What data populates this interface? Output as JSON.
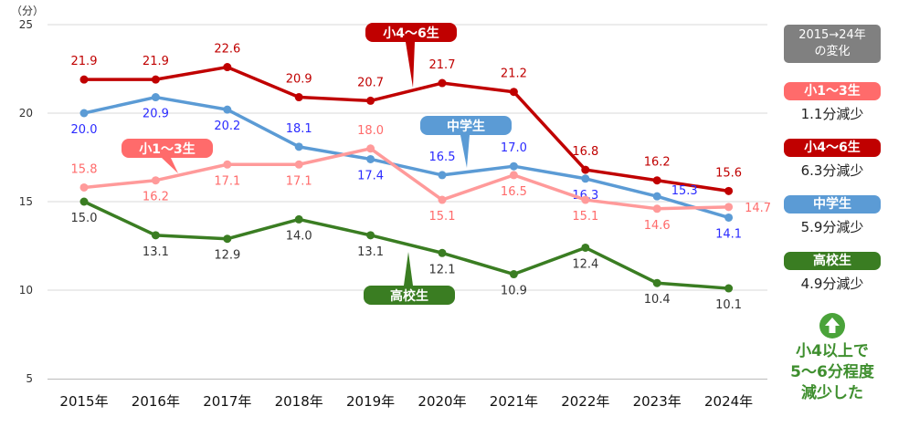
{
  "chart_data": {
    "type": "line",
    "unit_label": "（分）",
    "categories": [
      "2015年",
      "2016年",
      "2017年",
      "2018年",
      "2019年",
      "2020年",
      "2021年",
      "2022年",
      "2023年",
      "2024年"
    ],
    "ylim": [
      5,
      25
    ],
    "yticks": [
      5,
      10,
      15,
      20,
      25
    ],
    "grid": true,
    "series": [
      {
        "name": "小4～6生",
        "color": "#c00000",
        "label_color": "#c00000",
        "values": [
          21.9,
          21.9,
          22.6,
          20.9,
          20.7,
          21.7,
          21.2,
          16.8,
          16.2,
          15.6
        ]
      },
      {
        "name": "中学生",
        "color": "#5b9bd5",
        "label_color": "#2b2bff",
        "values": [
          20.0,
          20.9,
          20.2,
          18.1,
          17.4,
          16.5,
          17.0,
          16.3,
          15.3,
          14.1
        ]
      },
      {
        "name": "小1～3生",
        "color": "#ff9a9a",
        "label_color": "#ff6b6b",
        "values": [
          15.8,
          16.2,
          17.1,
          17.1,
          18.0,
          15.1,
          16.5,
          15.1,
          14.6,
          14.7
        ]
      },
      {
        "name": "高校生",
        "color": "#3a7d22",
        "label_color": "#333333",
        "values": [
          15.0,
          13.1,
          12.9,
          14.0,
          13.1,
          12.1,
          10.9,
          12.4,
          10.4,
          10.1
        ]
      }
    ]
  },
  "side": {
    "header": "2015→24年",
    "header2": "の変化",
    "items": [
      {
        "label": "小1～3生",
        "change": "1.1分減少",
        "color": "#ff6b6b"
      },
      {
        "label": "小4～6生",
        "change": "6.3分減少",
        "color": "#c00000"
      },
      {
        "label": "中学生",
        "change": "5.9分減少",
        "color": "#5b9bd5"
      },
      {
        "label": "高校生",
        "change": "4.9分減少",
        "color": "#3a7d22"
      }
    ],
    "arrow_icon": "up-arrow-circle-icon",
    "conclusion": [
      "小4以上で",
      "5～6分程度",
      "減少した"
    ],
    "conclusion_color": "#3f8f2f"
  }
}
